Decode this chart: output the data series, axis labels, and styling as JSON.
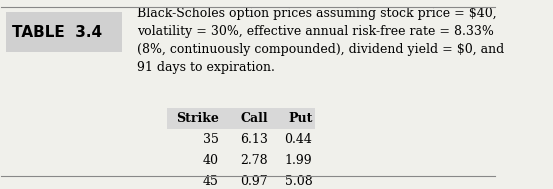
{
  "table_label": "TABLE  3.4",
  "table_label_bg": "#d0d0d0",
  "description": "Black-Scholes option prices assuming stock price = $40,\nvolatility = 30%, effective annual risk-free rate = 8.33%\n(8%, continuously compounded), dividend yield = $0, and\n91 days to expiration.",
  "headers": [
    "Strike",
    "Call",
    "Put"
  ],
  "rows": [
    [
      "35",
      "6.13",
      "0.44"
    ],
    [
      "40",
      "2.78",
      "1.99"
    ],
    [
      "45",
      "0.97",
      "5.08"
    ]
  ],
  "header_bg": "#d8d8d8",
  "bg_color": "#f0f0eb",
  "border_color": "#888888",
  "font_size_label": 11,
  "font_size_desc": 9,
  "font_size_table": 9
}
